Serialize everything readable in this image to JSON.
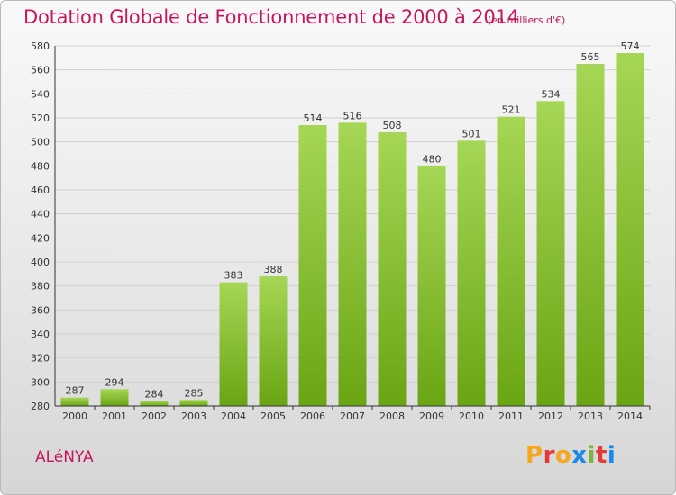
{
  "header": {
    "title": "Dotation Globale de Fonctionnement de 2000 à 2014",
    "subtitle": "(en milliers d'€)"
  },
  "footer": {
    "town": "ALéNYA",
    "logo_text": "Proxiti",
    "logo_colors": [
      "#f5a623",
      "#e53935",
      "#f5a623",
      "#1e88e5",
      "#7cb342",
      "#e53935",
      "#1e88e5"
    ]
  },
  "colors": {
    "bar_light": "#a6d655",
    "bar_dark": "#6aa514",
    "grid": "#cfcfcf",
    "axis": "#333333",
    "text": "#333333",
    "accent": "#c2185b"
  },
  "chart_data": {
    "type": "bar",
    "title": "Dotation Globale de Fonctionnement de 2000 à 2014",
    "subtitle": "(en milliers d'€)",
    "xlabel": "",
    "ylabel": "",
    "categories": [
      "2000",
      "2001",
      "2002",
      "2003",
      "2004",
      "2005",
      "2006",
      "2007",
      "2008",
      "2009",
      "2010",
      "2011",
      "2012",
      "2013",
      "2014"
    ],
    "values": [
      287,
      294,
      284,
      285,
      383,
      388,
      514,
      516,
      508,
      480,
      501,
      521,
      534,
      565,
      574
    ],
    "ylim": [
      280,
      580
    ],
    "yticks": [
      280,
      300,
      320,
      340,
      360,
      380,
      400,
      420,
      440,
      460,
      480,
      500,
      520,
      540,
      560,
      580
    ],
    "grid": true,
    "legend": "none"
  }
}
